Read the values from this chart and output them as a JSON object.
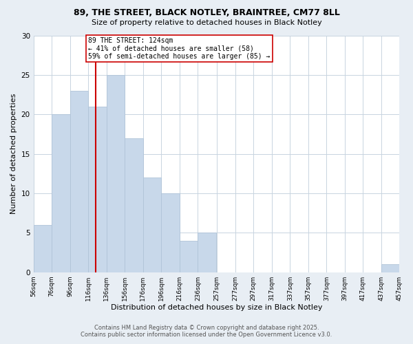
{
  "title1": "89, THE STREET, BLACK NOTLEY, BRAINTREE, CM77 8LL",
  "title2": "Size of property relative to detached houses in Black Notley",
  "xlabel": "Distribution of detached houses by size in Black Notley",
  "ylabel": "Number of detached properties",
  "bar_color": "#c8d8ea",
  "bar_edge_color": "#b0c4d8",
  "bins": [
    56,
    76,
    96,
    116,
    136,
    156,
    176,
    196,
    216,
    236,
    257,
    277,
    297,
    317,
    337,
    357,
    377,
    397,
    417,
    437,
    457
  ],
  "bin_labels": [
    "56sqm",
    "76sqm",
    "96sqm",
    "116sqm",
    "136sqm",
    "156sqm",
    "176sqm",
    "196sqm",
    "216sqm",
    "236sqm",
    "257sqm",
    "277sqm",
    "297sqm",
    "317sqm",
    "337sqm",
    "357sqm",
    "377sqm",
    "397sqm",
    "417sqm",
    "437sqm",
    "457sqm"
  ],
  "counts": [
    6,
    20,
    23,
    21,
    25,
    17,
    12,
    10,
    4,
    5,
    0,
    0,
    0,
    0,
    0,
    0,
    0,
    0,
    0,
    1
  ],
  "ylim": [
    0,
    30
  ],
  "yticks": [
    0,
    5,
    10,
    15,
    20,
    25,
    30
  ],
  "vline_x": 124,
  "vline_color": "#cc0000",
  "annotation_title": "89 THE STREET: 124sqm",
  "annotation_line1": "← 41% of detached houses are smaller (58)",
  "annotation_line2": "59% of semi-detached houses are larger (85) →",
  "annotation_box_color": "#ffffff",
  "annotation_box_edge": "#cc0000",
  "footer1": "Contains HM Land Registry data © Crown copyright and database right 2025.",
  "footer2": "Contains public sector information licensed under the Open Government Licence v3.0.",
  "background_color": "#e8eef4",
  "plot_bg_color": "#ffffff",
  "grid_color": "#c8d4e0"
}
